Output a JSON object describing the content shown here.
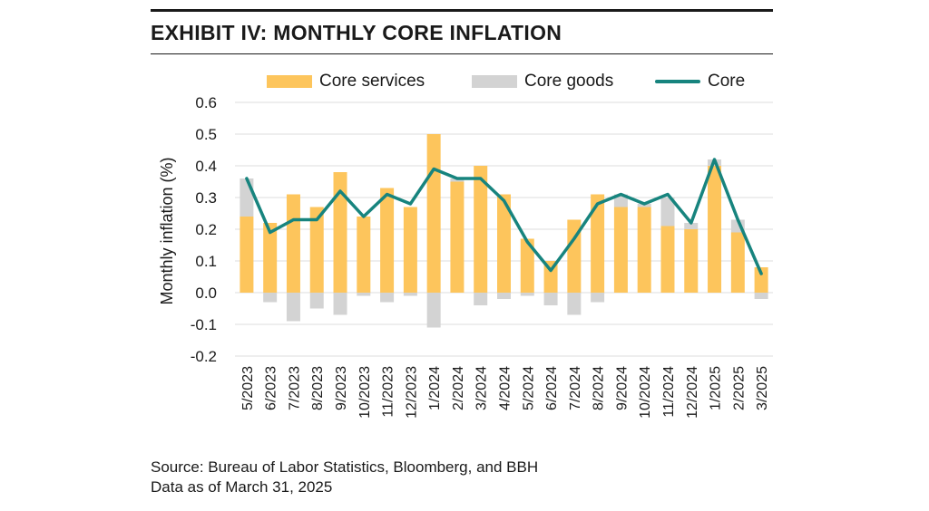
{
  "header": {
    "title": "EXHIBIT IV: MONTHLY CORE INFLATION"
  },
  "footer": {
    "source": "Source: Bureau of Labor Statistics, Bloomberg, and BBH",
    "date": "Data as of March 31, 2025"
  },
  "chart_data": {
    "type": "bar",
    "title": "EXHIBIT IV: MONTHLY CORE INFLATION",
    "xlabel": "",
    "ylabel": "Monthly inflation (%)",
    "ylim": [
      -0.2,
      0.6
    ],
    "yticks": [
      "0.6",
      "0.5",
      "0.4",
      "0.3",
      "0.2",
      "0.1",
      "0.0",
      "-0.1",
      "-0.2"
    ],
    "grid": true,
    "legend_position": "top",
    "categories": [
      "5/2023",
      "6/2023",
      "7/2023",
      "8/2023",
      "9/2023",
      "10/2023",
      "11/2023",
      "12/2023",
      "1/2024",
      "2/2024",
      "3/2024",
      "4/2024",
      "5/2024",
      "6/2024",
      "7/2024",
      "8/2024",
      "9/2024",
      "10/2024",
      "11/2024",
      "12/2024",
      "1/2025",
      "2/2025",
      "3/2025"
    ],
    "series": [
      {
        "name": "Core services",
        "kind": "stacked-bar",
        "color": "#FDC55C",
        "values": [
          0.24,
          0.22,
          0.31,
          0.27,
          0.38,
          0.24,
          0.33,
          0.27,
          0.5,
          0.35,
          0.4,
          0.31,
          0.17,
          0.1,
          0.23,
          0.31,
          0.27,
          0.27,
          0.21,
          0.2,
          0.4,
          0.19,
          0.08
        ]
      },
      {
        "name": "Core goods",
        "kind": "stacked-bar",
        "color": "#D3D3D3",
        "values": [
          0.12,
          -0.03,
          -0.09,
          -0.05,
          -0.07,
          -0.01,
          -0.03,
          -0.01,
          -0.11,
          0.01,
          -0.04,
          -0.02,
          -0.01,
          -0.04,
          -0.07,
          -0.03,
          0.04,
          0.01,
          0.09,
          0.02,
          0.02,
          0.04,
          -0.02
        ]
      },
      {
        "name": "Core",
        "kind": "line",
        "color": "#17847E",
        "values": [
          0.36,
          0.19,
          0.23,
          0.23,
          0.32,
          0.24,
          0.31,
          0.28,
          0.39,
          0.36,
          0.36,
          0.29,
          0.16,
          0.07,
          0.17,
          0.28,
          0.31,
          0.28,
          0.31,
          0.22,
          0.42,
          0.23,
          0.06
        ]
      }
    ]
  }
}
